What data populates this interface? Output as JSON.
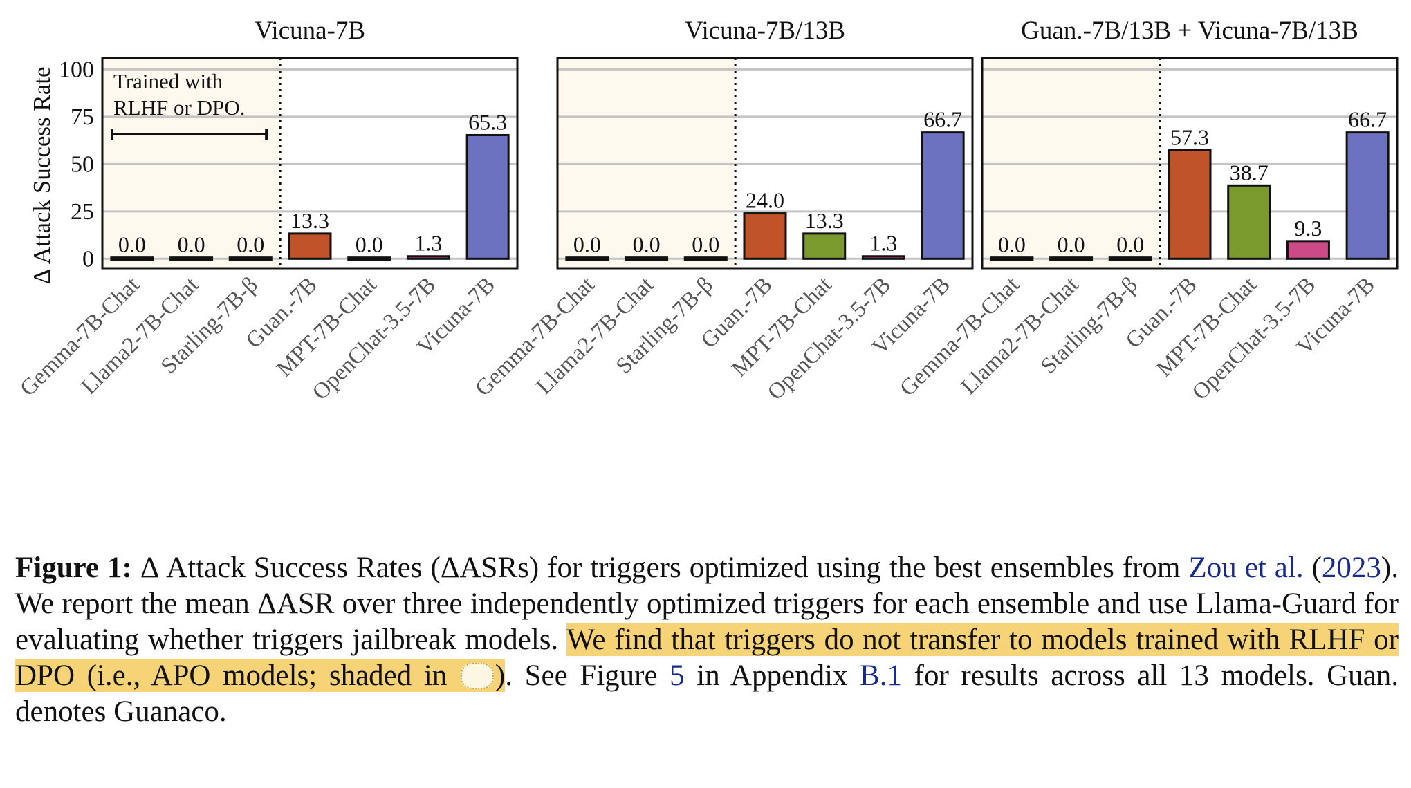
{
  "chart_data": {
    "type": "bar",
    "ylabel": "Δ Attack Success Rate",
    "yticks": [
      0,
      25,
      50,
      75,
      100
    ],
    "ylim": [
      -5,
      106
    ],
    "grid": "horizontal",
    "shaded_group": "first three models (APO models)",
    "categories": [
      "Gemma-7B-Chat",
      "Llama2-7B-Chat",
      "Starling-7B-β",
      "Guan.-7B",
      "MPT-7B-Chat",
      "OpenChat-3.5-7B",
      "Vicuna-7B"
    ],
    "colors": [
      "#1a1a1a",
      "#1a1a1a",
      "#1a1a1a",
      "#c0532a",
      "#7a9a2e",
      "#cc4a86",
      "#6c72c0"
    ],
    "panels": [
      {
        "title": "Vicuna-7B",
        "values": [
          0.0,
          0.0,
          0.0,
          13.3,
          0.0,
          1.3,
          65.3
        ],
        "labels": [
          "0.0",
          "0.0",
          "0.0",
          "13.3",
          "0.0",
          "1.3",
          "65.3"
        ],
        "annotation": {
          "line1": "Trained with",
          "line2": "RLHF or DPO."
        }
      },
      {
        "title": "Vicuna-7B/13B",
        "values": [
          0.0,
          0.0,
          0.0,
          24.0,
          13.3,
          1.3,
          66.7
        ],
        "labels": [
          "0.0",
          "0.0",
          "0.0",
          "24.0",
          "13.3",
          "1.3",
          "66.7"
        ]
      },
      {
        "title": "Guan.-7B/13B + Vicuna-7B/13B",
        "values": [
          0.0,
          0.0,
          0.0,
          57.3,
          38.7,
          9.3,
          66.7
        ],
        "labels": [
          "0.0",
          "0.0",
          "0.0",
          "57.3",
          "38.7",
          "9.3",
          "66.7"
        ]
      }
    ]
  },
  "caption": {
    "label": "Figure 1:",
    "t1": " Δ Attack Success Rates (ΔASRs) for triggers optimized using the best ensembles from ",
    "cite_authors": "Zou et al.",
    "t2": " (",
    "cite_year": "2023",
    "t3": ").  We report the mean ΔASR over three independently optimized triggers for each ensemble and use Llama-Guard for evaluating whether triggers jailbreak models.  ",
    "highlight1": "We find that triggers do not transfer to models trained with RLHF or DPO (i.e., APO models; shaded in ",
    "highlight2": ")",
    "t4": ". See Figure ",
    "fig_ref": "5",
    "t5": " in Appendix ",
    "app_ref": "B.1",
    "t6": " for results across all 13 models. Guan. denotes Guanaco."
  }
}
